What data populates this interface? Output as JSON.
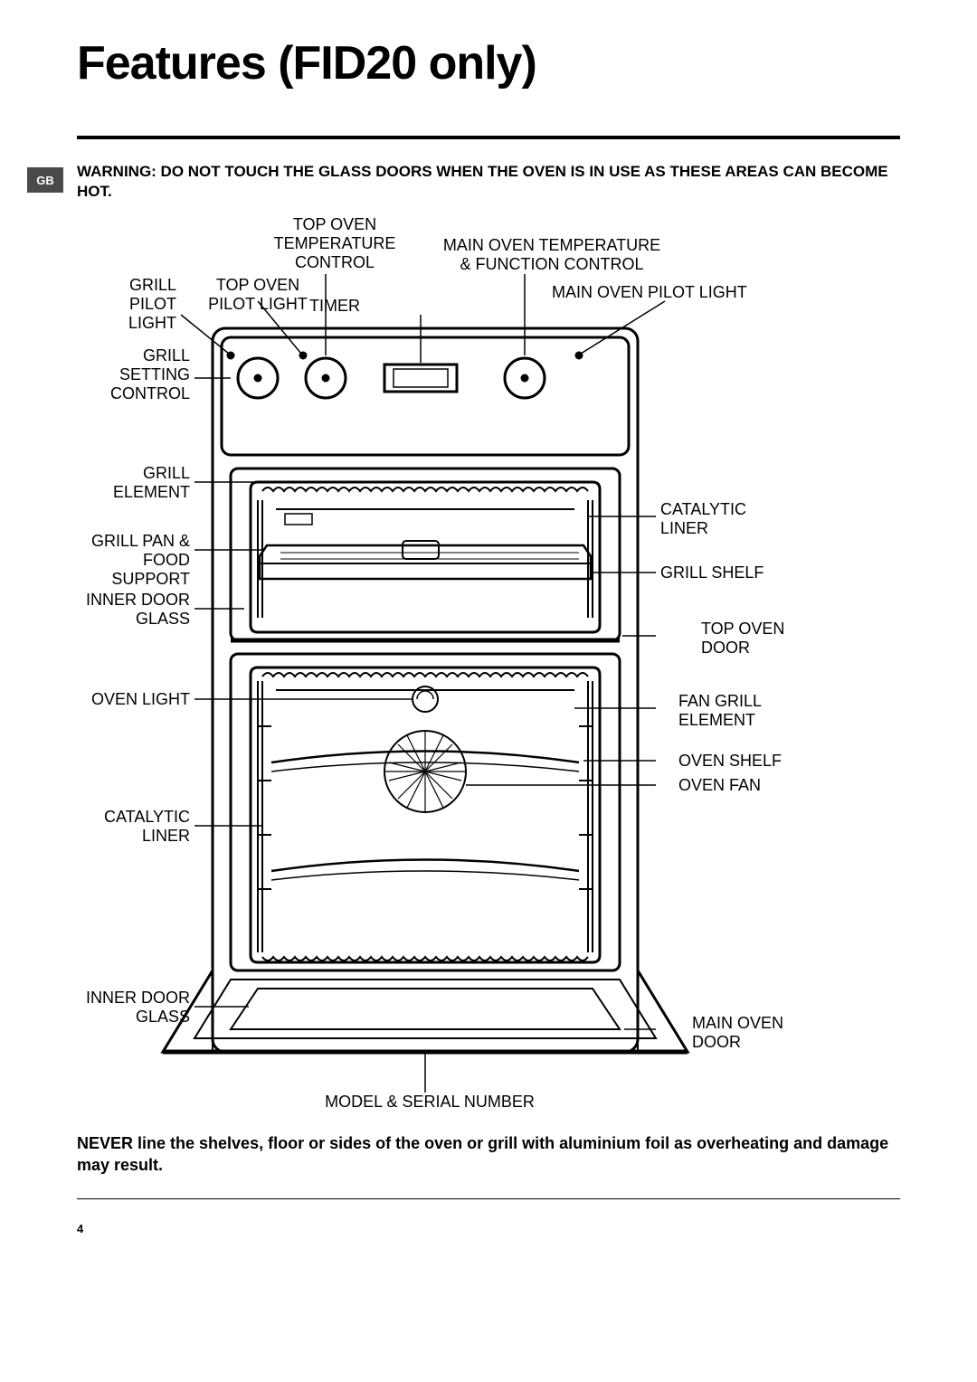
{
  "page": {
    "title": "Features (FID20 only)",
    "badge": "GB",
    "warning_top": "WARNING: DO NOT TOUCH THE GLASS DOORS WHEN THE OVEN IS IN USE AS THESE AREAS CAN BECOME HOT.",
    "warning_bottom": "NEVER line the shelves, floor or sides of the oven or grill with aluminium foil as overheating and damage may result.",
    "page_number": "4"
  },
  "labels": {
    "top_oven_temp_control": "TOP OVEN\nTEMPERATURE\nCONTROL",
    "main_oven_temp_control": "MAIN OVEN TEMPERATURE\n& FUNCTION CONTROL",
    "grill_pilot_light": "GRILL\nPILOT\nLIGHT",
    "top_oven_pilot_light": "TOP OVEN\nPILOT LIGHT",
    "main_oven_pilot_light": "MAIN OVEN PILOT LIGHT",
    "timer": "TIMER",
    "grill_setting_control": "GRILL\nSETTING\nCONTROL",
    "grill_element": "GRILL\nELEMENT",
    "catalytic_liner_r": "CATALYTIC\nLINER",
    "grill_pan_food_support": "GRILL PAN &\nFOOD SUPPORT",
    "grill_shelf": "GRILL SHELF",
    "inner_door_glass_1": "INNER DOOR\nGLASS",
    "top_oven_door": "TOP OVEN\nDOOR",
    "oven_light": "OVEN LIGHT",
    "fan_grill_element": "FAN GRILL\nELEMENT",
    "oven_shelf": "OVEN SHELF",
    "oven_fan": "OVEN FAN",
    "catalytic_liner_l": "CATALYTIC\nLINER",
    "inner_door_glass_2": "INNER DOOR\nGLASS",
    "main_oven_door": "MAIN OVEN\nDOOR",
    "model_serial": "MODEL & SERIAL NUMBER"
  },
  "style": {
    "line_color": "#000000",
    "line_width_main": 3,
    "line_width_thin": 1.5,
    "background": "#ffffff"
  }
}
